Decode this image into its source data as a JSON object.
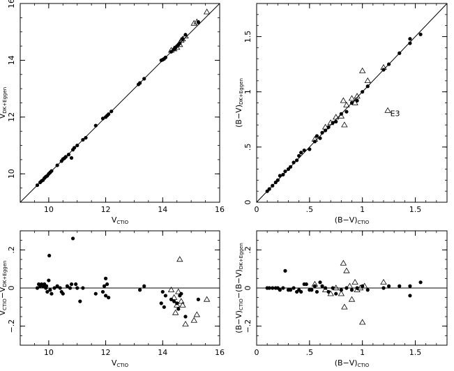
{
  "chart_data": [
    {
      "type": "scatter",
      "id": "v-vs-v",
      "xlabel": "V",
      "xlabel_sub": "CTIO",
      "ylabel": "V",
      "ylabel_sub": "DK+Eggen",
      "xlim": [
        9,
        16
      ],
      "ylim": [
        9,
        16
      ],
      "xticks": [
        10,
        12,
        14,
        16
      ],
      "yticks": [
        10,
        12,
        14,
        16
      ],
      "reference_line": "identity",
      "series": [
        {
          "marker": "filled-circle",
          "points": [
            [
              9.6,
              9.6
            ],
            [
              9.7,
              9.7
            ],
            [
              9.75,
              9.75
            ],
            [
              9.8,
              9.78
            ],
            [
              9.85,
              9.85
            ],
            [
              9.9,
              9.9
            ],
            [
              9.95,
              9.93
            ],
            [
              10.0,
              10.0
            ],
            [
              10.05,
              10.05
            ],
            [
              10.1,
              10.1
            ],
            [
              10.3,
              10.3
            ],
            [
              10.45,
              10.45
            ],
            [
              10.5,
              10.52
            ],
            [
              10.55,
              10.55
            ],
            [
              10.6,
              10.6
            ],
            [
              10.7,
              10.68
            ],
            [
              10.8,
              10.56
            ],
            [
              10.85,
              10.85
            ],
            [
              10.9,
              10.92
            ],
            [
              11.0,
              11.0
            ],
            [
              11.2,
              11.2
            ],
            [
              11.3,
              11.27
            ],
            [
              11.65,
              11.7
            ],
            [
              11.9,
              11.95
            ],
            [
              12.0,
              12.0
            ],
            [
              12.05,
              12.05
            ],
            [
              12.1,
              12.1
            ],
            [
              12.2,
              12.2
            ],
            [
              13.15,
              13.15
            ],
            [
              13.2,
              13.2
            ],
            [
              13.35,
              13.35
            ],
            [
              13.95,
              14.0
            ],
            [
              14.0,
              14.02
            ],
            [
              14.05,
              14.05
            ],
            [
              14.1,
              14.1
            ],
            [
              14.3,
              14.3
            ],
            [
              14.4,
              14.38
            ],
            [
              14.45,
              14.45
            ],
            [
              14.5,
              14.5
            ],
            [
              14.55,
              14.55
            ],
            [
              14.6,
              14.6
            ],
            [
              14.7,
              14.75
            ],
            [
              14.8,
              14.9
            ],
            [
              15.25,
              15.35
            ]
          ]
        },
        {
          "marker": "open-triangle",
          "points": [
            [
              14.3,
              14.35
            ],
            [
              14.4,
              14.4
            ],
            [
              14.5,
              14.45
            ],
            [
              14.6,
              14.55
            ],
            [
              14.65,
              14.7
            ],
            [
              14.7,
              14.75
            ],
            [
              14.8,
              14.85
            ],
            [
              15.1,
              15.3
            ],
            [
              15.2,
              15.35
            ],
            [
              15.55,
              15.7
            ]
          ]
        }
      ]
    },
    {
      "type": "scatter",
      "id": "bv-vs-bv",
      "xlabel": "(B−V)",
      "xlabel_sub": "CTIO",
      "ylabel": "(B−V)",
      "ylabel_sub": "DK+Eggen",
      "xlim": [
        0,
        1.8
      ],
      "ylim": [
        0,
        1.8
      ],
      "xticks": [
        0,
        0.5,
        1,
        1.5
      ],
      "yticks": [
        0,
        0.5,
        1,
        1.5
      ],
      "reference_line": "identity",
      "annotations": [
        {
          "text": "E3",
          "x": 1.25,
          "y": 0.78
        }
      ],
      "series": [
        {
          "marker": "filled-circle",
          "points": [
            [
              0.1,
              0.1
            ],
            [
              0.12,
              0.12
            ],
            [
              0.15,
              0.15
            ],
            [
              0.18,
              0.18
            ],
            [
              0.2,
              0.2
            ],
            [
              0.22,
              0.24
            ],
            [
              0.25,
              0.25
            ],
            [
              0.27,
              0.28
            ],
            [
              0.3,
              0.3
            ],
            [
              0.32,
              0.32
            ],
            [
              0.35,
              0.36
            ],
            [
              0.38,
              0.38
            ],
            [
              0.4,
              0.42
            ],
            [
              0.42,
              0.45
            ],
            [
              0.45,
              0.47
            ],
            [
              0.5,
              0.48
            ],
            [
              0.55,
              0.55
            ],
            [
              0.57,
              0.6
            ],
            [
              0.6,
              0.58
            ],
            [
              0.62,
              0.63
            ],
            [
              0.65,
              0.65
            ],
            [
              0.68,
              0.68
            ],
            [
              0.72,
              0.72
            ],
            [
              0.75,
              0.73
            ],
            [
              0.8,
              0.8
            ],
            [
              0.85,
              0.82
            ],
            [
              0.9,
              0.9
            ],
            [
              0.95,
              0.92
            ],
            [
              1.0,
              1.0
            ],
            [
              1.05,
              1.05
            ],
            [
              1.2,
              1.2
            ],
            [
              1.25,
              1.25
            ],
            [
              1.35,
              1.35
            ],
            [
              1.45,
              1.44
            ],
            [
              1.45,
              1.48
            ],
            [
              1.55,
              1.52
            ]
          ]
        },
        {
          "marker": "open-triangle",
          "points": [
            [
              0.55,
              0.57
            ],
            [
              0.65,
              0.68
            ],
            [
              0.7,
              0.72
            ],
            [
              0.75,
              0.77
            ],
            [
              0.8,
              0.78
            ],
            [
              0.82,
              0.92
            ],
            [
              0.85,
              0.88
            ],
            [
              0.83,
              0.7
            ],
            [
              0.9,
              0.94
            ],
            [
              0.93,
              0.9
            ],
            [
              0.95,
              0.96
            ],
            [
              1.0,
              1.19
            ],
            [
              1.05,
              1.1
            ],
            [
              1.2,
              1.22
            ],
            [
              1.24,
              0.83
            ]
          ]
        }
      ]
    },
    {
      "type": "scatter",
      "id": "dv-vs-v",
      "xlabel": "V",
      "xlabel_sub": "CTIO",
      "ylabel_parts": [
        "V",
        "CTIO",
        "−V",
        "DK+Eggen"
      ],
      "xlim": [
        9,
        16
      ],
      "ylim": [
        -0.3,
        0.3
      ],
      "xticks": [
        10,
        12,
        14,
        16
      ],
      "yticks": [
        -0.2,
        0,
        0.2
      ],
      "reference_line": "zero",
      "series": [
        {
          "marker": "filled-circle",
          "points": [
            [
              9.6,
              0.0
            ],
            [
              9.65,
              0.02
            ],
            [
              9.7,
              0.01
            ],
            [
              9.75,
              0.02
            ],
            [
              9.8,
              0.01
            ],
            [
              9.85,
              0.02
            ],
            [
              9.9,
              0.0
            ],
            [
              9.92,
              0.01
            ],
            [
              9.95,
              -0.02
            ],
            [
              10.0,
              0.04
            ],
            [
              10.02,
              0.17
            ],
            [
              10.05,
              -0.01
            ],
            [
              10.1,
              -0.03
            ],
            [
              10.2,
              0.0
            ],
            [
              10.3,
              0.01
            ],
            [
              10.4,
              0.0
            ],
            [
              10.45,
              -0.02
            ],
            [
              10.5,
              -0.03
            ],
            [
              10.65,
              0.01
            ],
            [
              10.75,
              0.0
            ],
            [
              10.8,
              0.02
            ],
            [
              10.85,
              0.26
            ],
            [
              10.95,
              0.02
            ],
            [
              11.0,
              0.0
            ],
            [
              11.1,
              -0.07
            ],
            [
              11.2,
              0.0
            ],
            [
              11.65,
              -0.03
            ],
            [
              11.9,
              -0.02
            ],
            [
              11.95,
              0.01
            ],
            [
              12.0,
              0.05
            ],
            [
              12.0,
              -0.04
            ],
            [
              12.05,
              0.02
            ],
            [
              12.1,
              -0.05
            ],
            [
              13.2,
              -0.01
            ],
            [
              13.35,
              0.01
            ],
            [
              13.95,
              -0.08
            ],
            [
              14.0,
              -0.02
            ],
            [
              14.05,
              -0.1
            ],
            [
              14.1,
              -0.04
            ],
            [
              14.3,
              -0.06
            ],
            [
              14.4,
              -0.07
            ],
            [
              14.5,
              -0.08
            ],
            [
              14.55,
              -0.11
            ],
            [
              14.6,
              -0.04
            ],
            [
              14.65,
              -0.03
            ],
            [
              14.8,
              -0.15
            ],
            [
              15.25,
              -0.06
            ]
          ]
        },
        {
          "marker": "open-triangle",
          "points": [
            [
              14.3,
              -0.01
            ],
            [
              14.4,
              -0.05
            ],
            [
              14.45,
              -0.13
            ],
            [
              14.5,
              -0.09
            ],
            [
              14.55,
              -0.02
            ],
            [
              14.6,
              0.15
            ],
            [
              14.65,
              -0.07
            ],
            [
              14.7,
              -0.09
            ],
            [
              14.8,
              -0.19
            ],
            [
              15.1,
              -0.17
            ],
            [
              15.2,
              -0.14
            ],
            [
              15.55,
              -0.06
            ]
          ]
        }
      ]
    },
    {
      "type": "scatter",
      "id": "dbv-vs-bv",
      "xlabel": "(B−V)",
      "xlabel_sub": "CTIO",
      "ylabel_parts": [
        "(B−V)",
        "CTIO",
        "−(B−V)",
        "DK+Eggen"
      ],
      "xlim": [
        0,
        1.8
      ],
      "ylim": [
        -0.3,
        0.3
      ],
      "xticks": [
        0,
        0.5,
        1,
        1.5
      ],
      "yticks": [
        -0.2,
        0,
        0.2
      ],
      "reference_line": "zero",
      "series": [
        {
          "marker": "filled-circle",
          "points": [
            [
              0.1,
              0.0
            ],
            [
              0.12,
              0.0
            ],
            [
              0.15,
              0.0
            ],
            [
              0.18,
              0.0
            ],
            [
              0.2,
              0.0
            ],
            [
              0.22,
              -0.01
            ],
            [
              0.25,
              0.0
            ],
            [
              0.27,
              0.09
            ],
            [
              0.3,
              -0.01
            ],
            [
              0.32,
              -0.01
            ],
            [
              0.35,
              0.0
            ],
            [
              0.38,
              -0.02
            ],
            [
              0.4,
              -0.01
            ],
            [
              0.42,
              -0.02
            ],
            [
              0.45,
              0.02
            ],
            [
              0.47,
              0.02
            ],
            [
              0.5,
              -0.01
            ],
            [
              0.52,
              -0.01
            ],
            [
              0.55,
              0.01
            ],
            [
              0.57,
              -0.02
            ],
            [
              0.6,
              0.03
            ],
            [
              0.62,
              0.01
            ],
            [
              0.65,
              0.0
            ],
            [
              0.68,
              -0.02
            ],
            [
              0.72,
              0.0
            ],
            [
              0.75,
              -0.03
            ],
            [
              0.8,
              -0.01
            ],
            [
              0.85,
              0.0
            ],
            [
              0.9,
              -0.01
            ],
            [
              0.95,
              0.0
            ],
            [
              1.0,
              0.01
            ],
            [
              1.05,
              -0.01
            ],
            [
              1.2,
              0.0
            ],
            [
              1.25,
              0.01
            ],
            [
              1.35,
              0.01
            ],
            [
              1.45,
              0.01
            ],
            [
              1.45,
              -0.04
            ],
            [
              1.55,
              0.03
            ]
          ]
        },
        {
          "marker": "open-triangle",
          "points": [
            [
              0.55,
              0.02
            ],
            [
              0.65,
              -0.01
            ],
            [
              0.7,
              -0.03
            ],
            [
              0.75,
              0.0
            ],
            [
              0.8,
              -0.03
            ],
            [
              0.82,
              0.13
            ],
            [
              0.83,
              -0.1
            ],
            [
              0.85,
              0.09
            ],
            [
              0.88,
              0.01
            ],
            [
              0.9,
              -0.06
            ],
            [
              0.93,
              0.03
            ],
            [
              0.95,
              -0.01
            ],
            [
              0.98,
              0.0
            ],
            [
              1.0,
              -0.18
            ],
            [
              1.02,
              0.01
            ],
            [
              1.2,
              0.03
            ]
          ]
        }
      ]
    }
  ]
}
